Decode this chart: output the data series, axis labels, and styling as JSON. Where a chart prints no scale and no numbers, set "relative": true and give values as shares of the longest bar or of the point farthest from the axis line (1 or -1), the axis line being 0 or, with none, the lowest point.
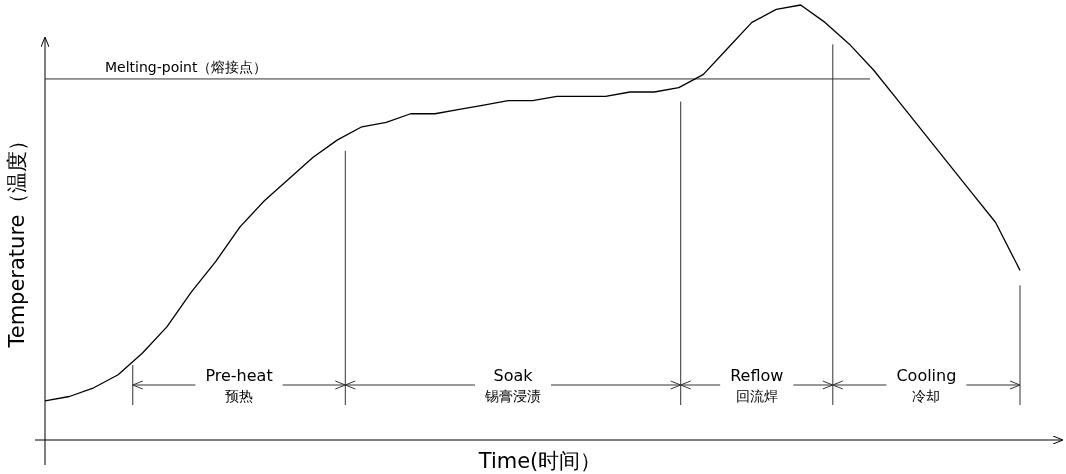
{
  "chart_data": {
    "type": "line",
    "relative": true,
    "xlabel": "Time(时间）",
    "ylabel": "Temperature（温度）",
    "categories": [
      null,
      null,
      null,
      null,
      null,
      null,
      null,
      null,
      null,
      null,
      null,
      null,
      null,
      null,
      null,
      null,
      null,
      null,
      null,
      null,
      null,
      null,
      null,
      null,
      null,
      null,
      null,
      null,
      null,
      null,
      null,
      null,
      null,
      null,
      null,
      null,
      null,
      null,
      null,
      null,
      null
    ],
    "marker": "none",
    "line_style": "solid",
    "series": [
      {
        "color": "#000000",
        "values": [
          0.09,
          0.1,
          0.12,
          0.15,
          0.2,
          0.26,
          0.34,
          0.41,
          0.49,
          0.55,
          0.6,
          0.65,
          0.69,
          0.72,
          0.73,
          0.75,
          0.75,
          0.76,
          0.77,
          0.78,
          0.78,
          0.79,
          0.79,
          0.79,
          0.8,
          0.8,
          0.81,
          0.84,
          0.9,
          0.96,
          0.99,
          1.0,
          0.96,
          0.91,
          0.85,
          0.78,
          0.71,
          0.64,
          0.57,
          0.5,
          0.39
        ]
      }
    ],
    "ref_lines": [
      {
        "axis": "y",
        "value": 0.83,
        "color": "#333333",
        "label": "Melting-point（熔接点）"
      }
    ],
    "annotations": [
      "Pre-heat\n预热",
      "Soak\n锡膏浸渍",
      "Reflow\n回流焊",
      "Cooling\n冷却"
    ]
  }
}
